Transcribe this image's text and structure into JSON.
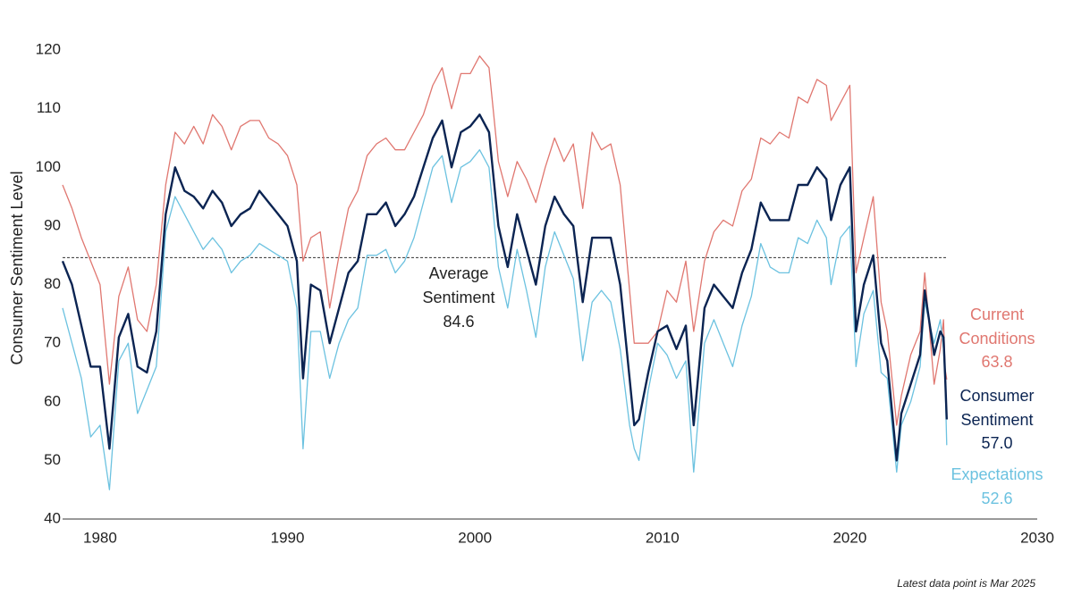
{
  "chart_data": {
    "type": "line",
    "y_label": "Consumer Sentiment Level",
    "note": "Latest data point is Mar 2025",
    "xlim": [
      1978,
      2030
    ],
    "xticks": [
      1980,
      1990,
      2000,
      2010,
      2020,
      2030
    ],
    "ylim": [
      40,
      122
    ],
    "yticks": [
      40,
      50,
      60,
      70,
      80,
      90,
      100,
      110,
      120
    ],
    "grid": false,
    "average": {
      "label": "Average Sentiment",
      "value": 84.6,
      "color": "#333333"
    },
    "x": [
      1978,
      1978.5,
      1979,
      1979.5,
      1980,
      1980.5,
      1981,
      1981.5,
      1982,
      1982.5,
      1983,
      1983.5,
      1984,
      1984.5,
      1985,
      1985.5,
      1986,
      1986.5,
      1987,
      1987.5,
      1988,
      1988.5,
      1989,
      1989.5,
      1990,
      1990.5,
      1990.83,
      1991.25,
      1991.75,
      1992.25,
      1992.75,
      1993.25,
      1993.75,
      1994.25,
      1994.75,
      1995.25,
      1995.75,
      1996.25,
      1996.75,
      1997.25,
      1997.75,
      1998.25,
      1998.75,
      1999.25,
      1999.75,
      2000.25,
      2000.75,
      2001.25,
      2001.75,
      2002.25,
      2002.75,
      2003.25,
      2003.75,
      2004.25,
      2004.75,
      2005.25,
      2005.75,
      2006.25,
      2006.75,
      2007.25,
      2007.75,
      2008.25,
      2008.5,
      2008.75,
      2009.25,
      2009.75,
      2010.25,
      2010.75,
      2011.25,
      2011.67,
      2012.25,
      2012.75,
      2013.25,
      2013.75,
      2014.25,
      2014.75,
      2015.25,
      2015.75,
      2016.25,
      2016.75,
      2017.25,
      2017.75,
      2018.25,
      2018.75,
      2019,
      2019.5,
      2020,
      2020.33,
      2020.75,
      2021.25,
      2021.67,
      2022,
      2022.5,
      2022.75,
      2023.25,
      2023.75,
      2024,
      2024.5,
      2024.83,
      2025,
      2025.08,
      2025.17
    ],
    "series": [
      {
        "name": "Current Conditions",
        "color": "#e07770",
        "width": 1.3,
        "last_label": "63.8",
        "values": [
          97,
          93,
          88,
          84,
          80,
          63,
          78,
          83,
          74,
          72,
          80,
          97,
          106,
          104,
          107,
          104,
          109,
          107,
          103,
          107,
          108,
          108,
          105,
          104,
          102,
          97,
          84,
          88,
          89,
          76,
          85,
          93,
          96,
          102,
          104,
          105,
          103,
          103,
          106,
          109,
          114,
          117,
          110,
          116,
          116,
          119,
          117,
          101,
          95,
          101,
          98,
          94,
          100,
          105,
          101,
          104,
          93,
          106,
          103,
          104,
          97,
          79,
          70,
          70,
          70,
          72,
          79,
          77,
          84,
          72,
          84,
          89,
          91,
          90,
          96,
          98,
          105,
          104,
          106,
          105,
          112,
          111,
          115,
          114,
          108,
          111,
          114,
          82,
          88,
          95,
          77,
          72,
          56,
          61,
          68,
          72,
          82,
          63,
          69,
          74,
          65.7,
          63.8
        ]
      },
      {
        "name": "Consumer Sentiment",
        "color": "#0b2452",
        "width": 2.4,
        "last_label": "57.0",
        "values": [
          84,
          80,
          73,
          66,
          66,
          52,
          71,
          75,
          66,
          65,
          72,
          92,
          100,
          96,
          95,
          93,
          96,
          94,
          90,
          92,
          93,
          96,
          94,
          92,
          90,
          84,
          64,
          80,
          79,
          70,
          76,
          82,
          84,
          92,
          92,
          94,
          90,
          92,
          95,
          100,
          105,
          108,
          100,
          106,
          107,
          109,
          106,
          90,
          83,
          92,
          86,
          80,
          90,
          95,
          92,
          90,
          77,
          88,
          88,
          88,
          80,
          64,
          56,
          57,
          65,
          72,
          73,
          69,
          73,
          56,
          76,
          80,
          78,
          76,
          82,
          86,
          94,
          91,
          91,
          91,
          97,
          97,
          100,
          98,
          91,
          97,
          100,
          72,
          80,
          85,
          70,
          67,
          50,
          58,
          63,
          68,
          79,
          68,
          72,
          71,
          64.7,
          57.0
        ]
      },
      {
        "name": "Expectations",
        "color": "#6cc2e0",
        "width": 1.3,
        "last_label": "52.6",
        "values": [
          76,
          70,
          64,
          54,
          56,
          45,
          67,
          70,
          58,
          62,
          66,
          89,
          95,
          92,
          89,
          86,
          88,
          86,
          82,
          84,
          85,
          87,
          86,
          85,
          84,
          76,
          52,
          72,
          72,
          64,
          70,
          74,
          76,
          85,
          85,
          86,
          82,
          84,
          88,
          94,
          100,
          102,
          94,
          100,
          101,
          103,
          100,
          83,
          76,
          86,
          79,
          71,
          83,
          89,
          85,
          81,
          67,
          77,
          79,
          77,
          69,
          56,
          52,
          50,
          62,
          70,
          68,
          64,
          67,
          48,
          70,
          74,
          70,
          66,
          73,
          78,
          87,
          83,
          82,
          82,
          88,
          87,
          91,
          88,
          80,
          88,
          90,
          66,
          75,
          79,
          65,
          64,
          48,
          56,
          60,
          66,
          77,
          70,
          74,
          69,
          64,
          52.6
        ]
      }
    ]
  }
}
